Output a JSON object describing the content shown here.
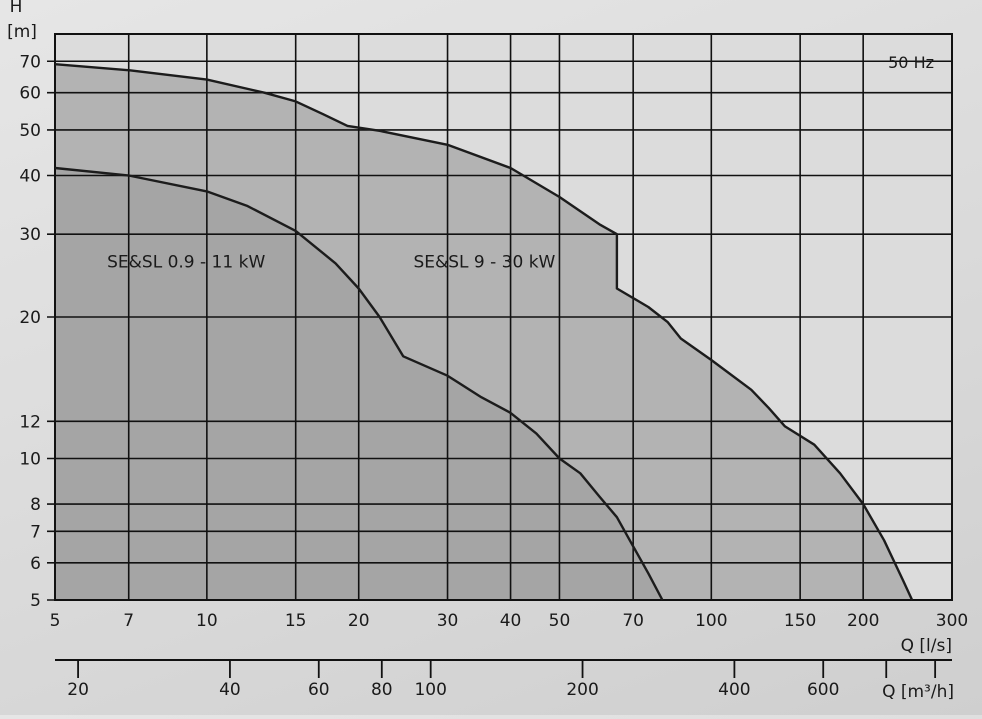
{
  "chart_data": {
    "type": "line",
    "title": "",
    "annotation": "50 Hz",
    "xlabel": "Q [l/s]",
    "ylabel_top": "H",
    "ylabel_unit": "[m]",
    "x_scale": "log",
    "y_scale": "log",
    "xlim": [
      5,
      300
    ],
    "ylim": [
      5,
      80
    ],
    "x_ticks": [
      5,
      7,
      10,
      15,
      20,
      30,
      40,
      50,
      70,
      100,
      150,
      200,
      300
    ],
    "y_ticks": [
      5,
      6,
      7,
      8,
      10,
      12,
      20,
      30,
      40,
      50,
      60,
      70
    ],
    "grid": true,
    "secondary_x": {
      "label": "Q [m³/h]",
      "ticks": [
        20,
        40,
        60,
        80,
        100,
        200,
        400,
        600
      ],
      "minor_ticks": [
        800,
        1000
      ]
    },
    "series": [
      {
        "name": "SE&SL 0.9 - 11 kW",
        "points": [
          [
            5,
            41.5
          ],
          [
            7,
            40
          ],
          [
            10,
            37
          ],
          [
            12,
            34.5
          ],
          [
            15,
            30.5
          ],
          [
            18,
            26
          ],
          [
            20,
            23
          ],
          [
            22,
            20
          ],
          [
            24.5,
            16.5
          ],
          [
            30,
            15
          ],
          [
            35,
            13.5
          ],
          [
            40,
            12.5
          ],
          [
            45,
            11.3
          ],
          [
            50,
            10
          ],
          [
            55,
            9.3
          ],
          [
            60,
            8.3
          ],
          [
            65,
            7.5
          ],
          [
            70,
            6.5
          ],
          [
            75,
            5.7
          ],
          [
            80,
            5
          ]
        ]
      },
      {
        "name": "SE&SL 9 - 30 kW",
        "points": [
          [
            5,
            69
          ],
          [
            7,
            67
          ],
          [
            10,
            64
          ],
          [
            13,
            60
          ],
          [
            15,
            57.5
          ],
          [
            17,
            54
          ],
          [
            19,
            51
          ],
          [
            22,
            49.8
          ],
          [
            30,
            46.5
          ],
          [
            40,
            41.5
          ],
          [
            50,
            36
          ],
          [
            60,
            31.5
          ],
          [
            65,
            30
          ],
          [
            65,
            23
          ],
          [
            75,
            21
          ],
          [
            82,
            19.5
          ],
          [
            87,
            18
          ],
          [
            100,
            16.2
          ],
          [
            120,
            14
          ],
          [
            130,
            12.8
          ],
          [
            140,
            11.7
          ],
          [
            160,
            10.7
          ],
          [
            180,
            9.3
          ],
          [
            200,
            8
          ],
          [
            220,
            6.7
          ],
          [
            240,
            5.5
          ],
          [
            250,
            5
          ]
        ]
      }
    ]
  }
}
